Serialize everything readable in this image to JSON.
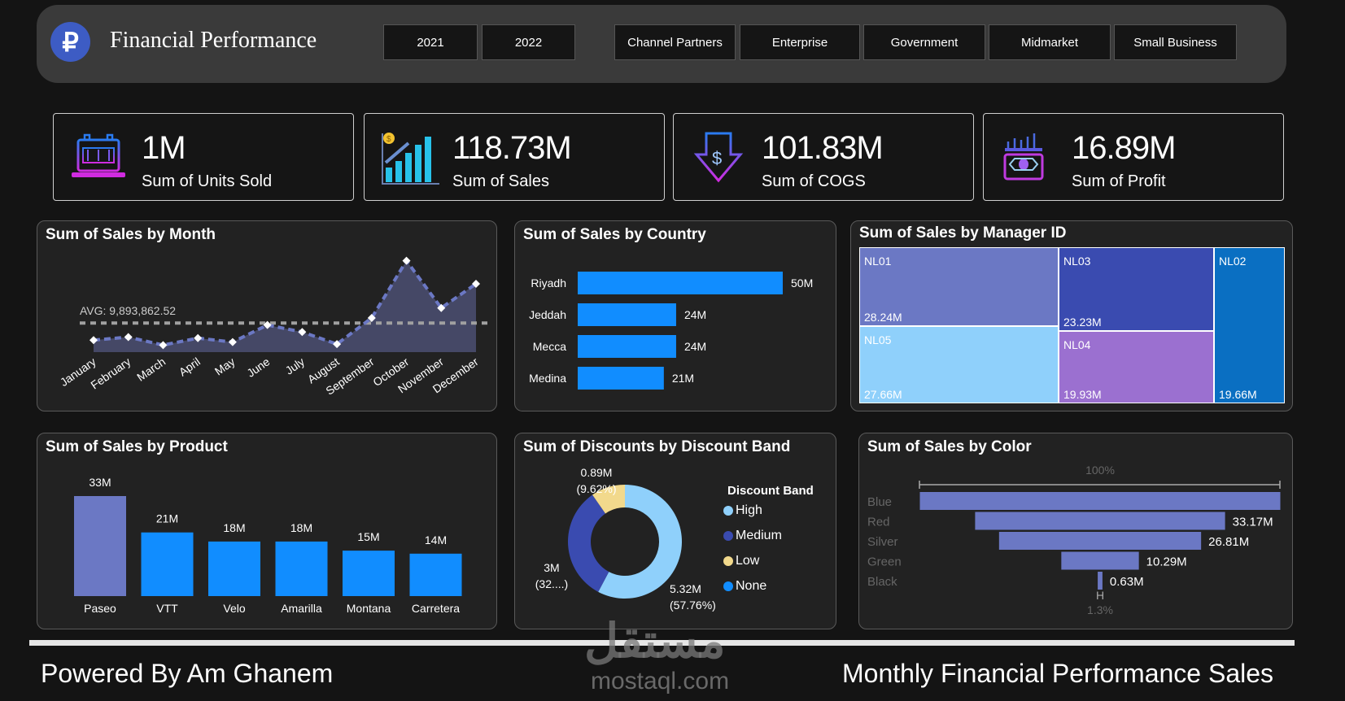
{
  "header": {
    "logo_glyph": "₽",
    "title": "Financial Performance",
    "years": [
      "2021",
      "2022"
    ],
    "segments": [
      "Channel Partners",
      "Enterprise",
      "Government",
      "Midmarket",
      "Small Business"
    ]
  },
  "kpis": [
    {
      "value": "1M",
      "label": "Sum of Units Sold",
      "icon": "calculator-laptop-icon"
    },
    {
      "value": "118.73M",
      "label": "Sum of Sales",
      "icon": "bar-growth-icon"
    },
    {
      "value": "101.83M",
      "label": "Sum of COGS",
      "icon": "dollar-down-arrow-icon"
    },
    {
      "value": "16.89M",
      "label": "Sum of Profit",
      "icon": "cash-stack-icon"
    }
  ],
  "footer": {
    "left": "Powered By Am Ghanem",
    "right": "Monthly Financial Performance Sales",
    "watermark": "mostaql.com",
    "watermark_ar": "مستقل"
  },
  "colors": {
    "lavender": "#6b78c4",
    "blue": "#118dff",
    "area": "#454866",
    "high": "#8fd0fb",
    "medium": "#3a4bb0",
    "low": "#f2d98c",
    "none": "#118dff",
    "nl02": "#0a6fc2",
    "nl04": "#9b70d0"
  },
  "chart_data": [
    {
      "type": "area",
      "title": "Sum of Sales by Month",
      "categories": [
        "January",
        "February",
        "March",
        "April",
        "May",
        "June",
        "July",
        "August",
        "September",
        "October",
        "November",
        "December"
      ],
      "values": [
        6.98,
        7.49,
        6.13,
        7.32,
        6.64,
        9.55,
        8.36,
        6.3,
        10.75,
        20.5,
        12.45,
        16.56
      ],
      "unit": "M",
      "ylim": [
        4.93,
        22
      ],
      "average_label": "AVG: 9,893,862.52",
      "average": 9.89
    },
    {
      "type": "bar",
      "orientation": "horizontal",
      "title": "Sum of Sales by Country",
      "categories": [
        "Riyadh",
        "Jeddah",
        "Mecca",
        "Medina"
      ],
      "values": [
        50,
        24,
        24,
        21
      ],
      "labels": [
        "50M",
        "24M",
        "24M",
        "21M"
      ],
      "xlim": [
        0,
        50
      ]
    },
    {
      "type": "treemap",
      "title": "Sum of Sales by Manager ID",
      "items": [
        {
          "name": "NL01",
          "label": "28.24M",
          "value": 28.24
        },
        {
          "name": "NL05",
          "label": "27.66M",
          "value": 27.66
        },
        {
          "name": "NL03",
          "label": "23.23M",
          "value": 23.23
        },
        {
          "name": "NL04",
          "label": "19.93M",
          "value": 19.93
        },
        {
          "name": "NL02",
          "label": "19.66M",
          "value": 19.66
        }
      ]
    },
    {
      "type": "bar",
      "title": "Sum of Sales by Product",
      "categories": [
        "Paseo",
        "VTT",
        "Velo",
        "Amarilla",
        "Montana",
        "Carretera"
      ],
      "values": [
        33,
        21,
        18,
        18,
        15,
        14
      ],
      "labels": [
        "33M",
        "21M",
        "18M",
        "18M",
        "15M",
        "14M"
      ],
      "ylim": [
        0,
        33
      ]
    },
    {
      "type": "pie",
      "donut": true,
      "title": "Sum of Discounts by Discount Band",
      "legend_title": "Discount Band",
      "legend_position": "right",
      "slices": [
        {
          "name": "High",
          "value": 5.32,
          "label": "5.32M",
          "pct": "(57.76%)"
        },
        {
          "name": "Medium",
          "value": 3.0,
          "label": "3M",
          "pct": "(32....)"
        },
        {
          "name": "Low",
          "value": 0.89,
          "label": "0.89M",
          "pct": "(9.62%)"
        },
        {
          "name": "None",
          "value": 0
        }
      ]
    },
    {
      "type": "funnel",
      "title": "Sum of Sales by Color",
      "top_label": "100%",
      "bottom_label": "1.3%",
      "marker": "H",
      "categories": [
        "Blue",
        "Red",
        "Silver",
        "Green",
        "Black"
      ],
      "values": [
        47.83,
        33.17,
        26.81,
        10.29,
        0.63
      ],
      "labels": [
        "",
        "33.17M",
        "26.81M",
        "10.29M",
        "0.63M"
      ]
    }
  ]
}
